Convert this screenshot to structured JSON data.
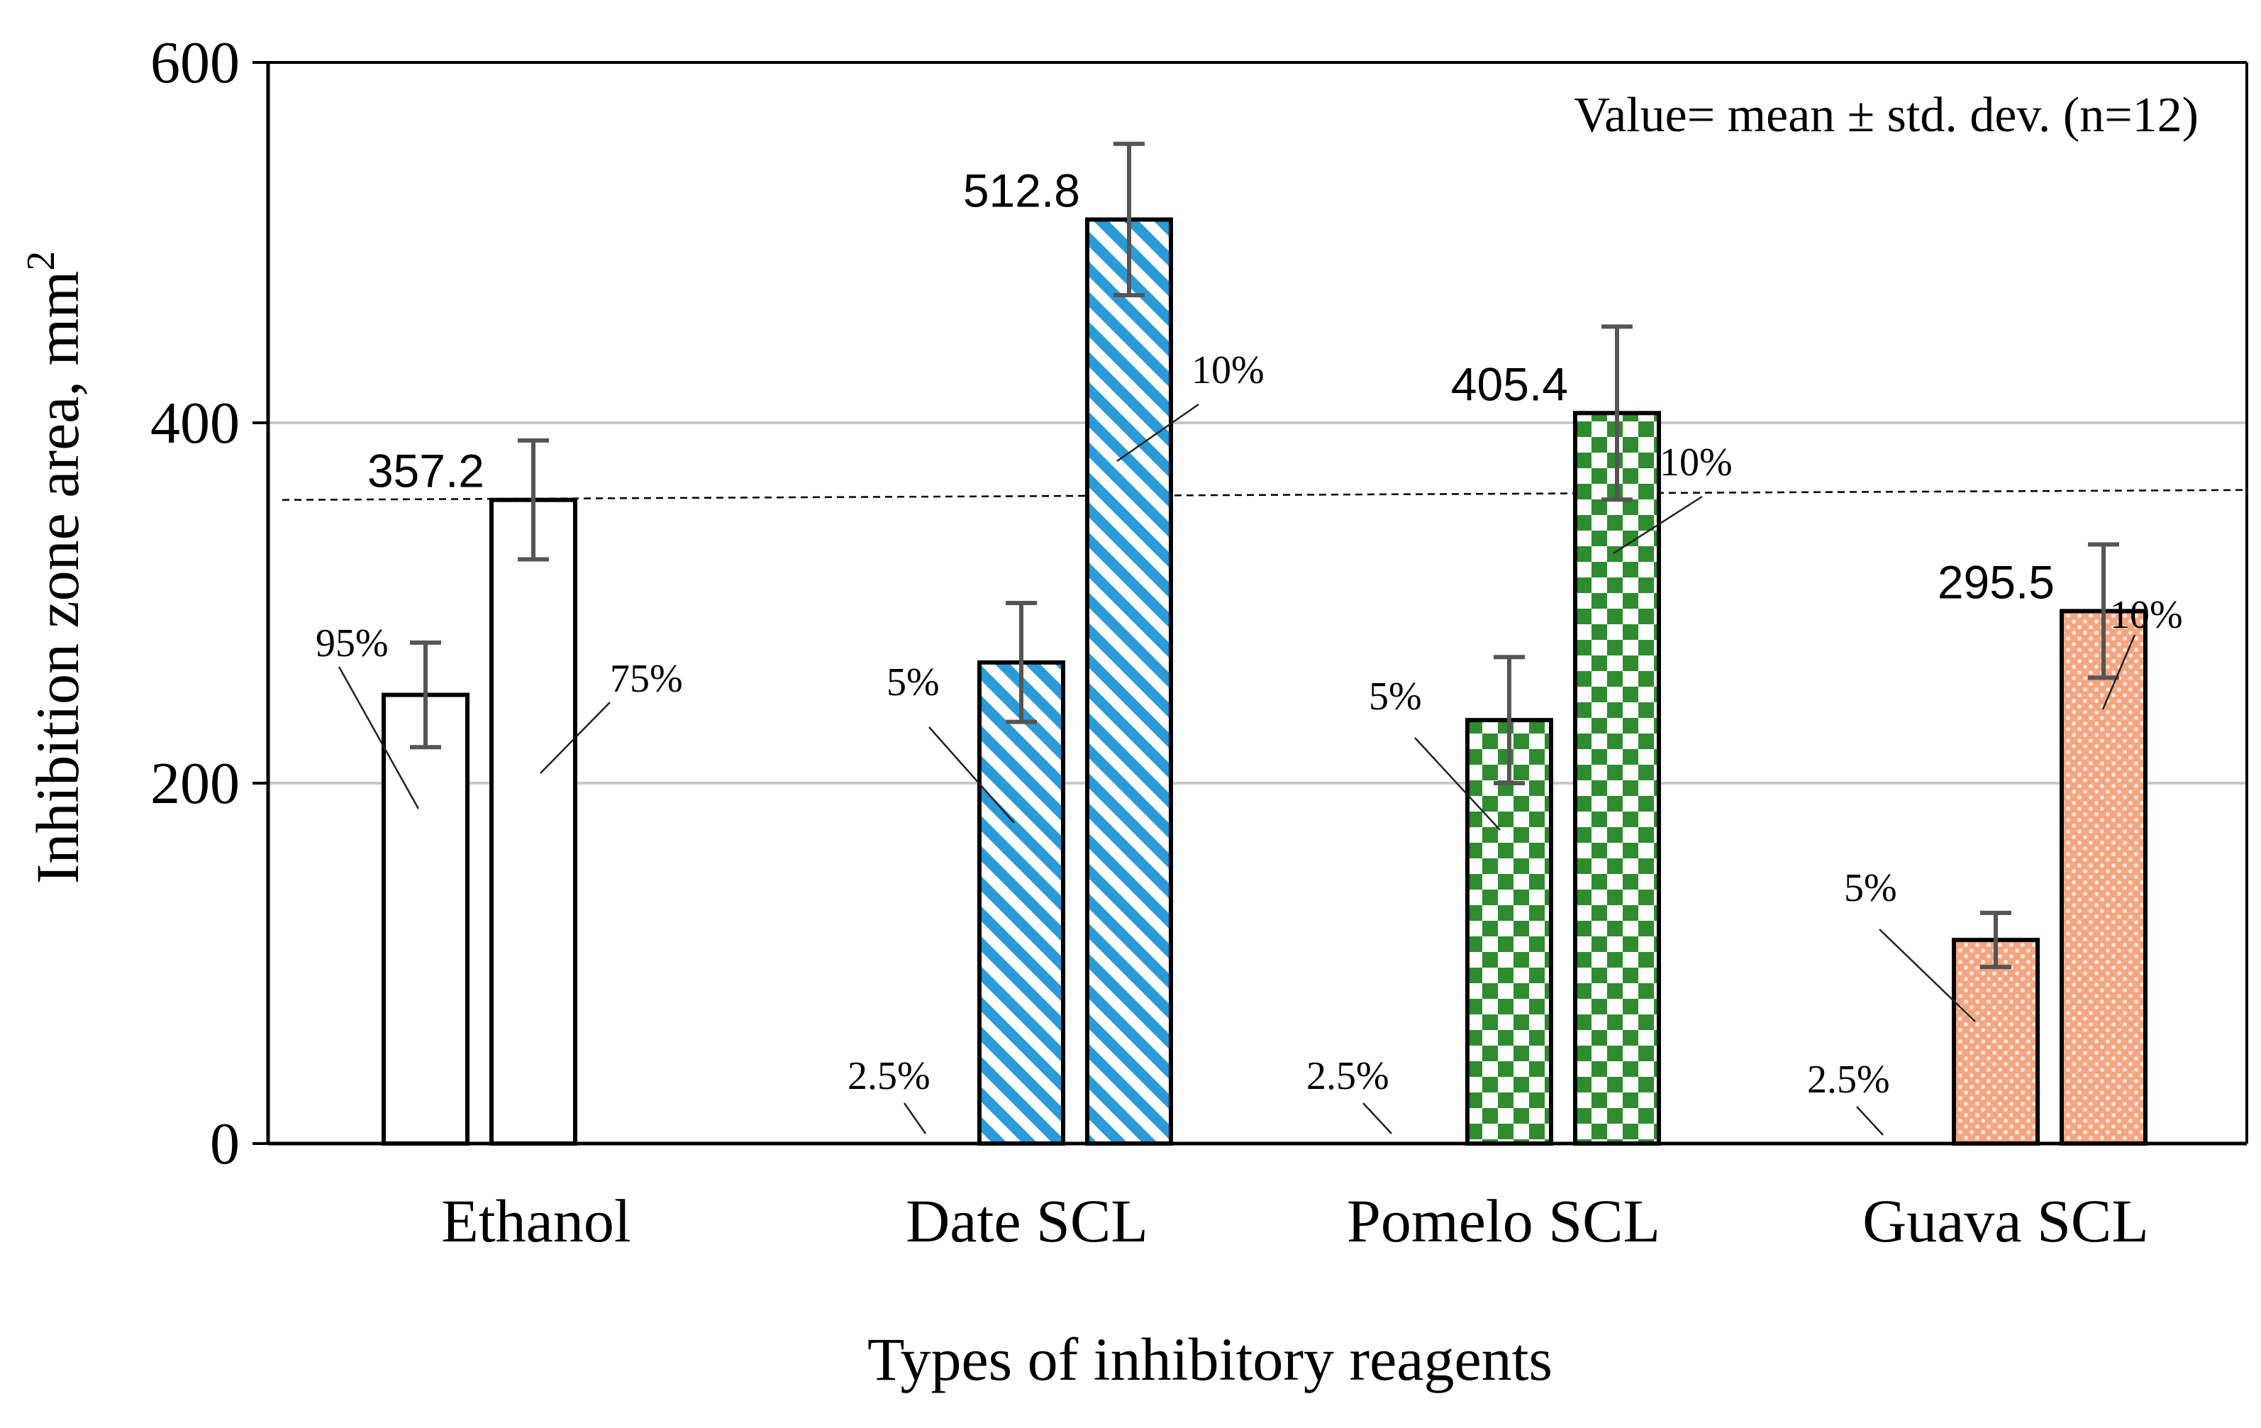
{
  "chart_data": {
    "type": "bar",
    "title": "",
    "ylabel": "Inhibition zone area, mm",
    "ylabel_superscript": "2",
    "xlabel": "Types of inhibitory reagents",
    "ylim": [
      0,
      600
    ],
    "yticks": [
      0,
      200,
      400,
      600
    ],
    "gridlines": [
      200,
      400
    ],
    "reference_line": 357.2,
    "annotation": "Value= mean ± std. dev. (n=12)",
    "groups": [
      {
        "category": "Ethanol",
        "style": "white",
        "bars": [
          {
            "label": "95%",
            "value": 249,
            "error": 29
          },
          {
            "label": "75%",
            "value": 357.2,
            "error": 33,
            "value_label": "357.2"
          }
        ]
      },
      {
        "category": "Date SCL",
        "style": "blue-diagonal",
        "bars": [
          {
            "label": "2.5%",
            "value": 0,
            "error": 0
          },
          {
            "label": "5%",
            "value": 267,
            "error": 33
          },
          {
            "label": "10%",
            "value": 512.8,
            "error": 42,
            "value_label": "512.8"
          }
        ]
      },
      {
        "category": "Pomelo SCL",
        "style": "green-checker",
        "bars": [
          {
            "label": "2.5%",
            "value": 0,
            "error": 0
          },
          {
            "label": "5%",
            "value": 235,
            "error": 35
          },
          {
            "label": "10%",
            "value": 405.4,
            "error": 48,
            "value_label": "405.4"
          }
        ]
      },
      {
        "category": "Guava SCL",
        "style": "orange-dots",
        "bars": [
          {
            "label": "2.5%",
            "value": 0,
            "error": 0
          },
          {
            "label": "5%",
            "value": 113,
            "error": 15
          },
          {
            "label": "10%",
            "value": 295.5,
            "error": 37,
            "value_label": "295.5"
          }
        ]
      }
    ]
  }
}
